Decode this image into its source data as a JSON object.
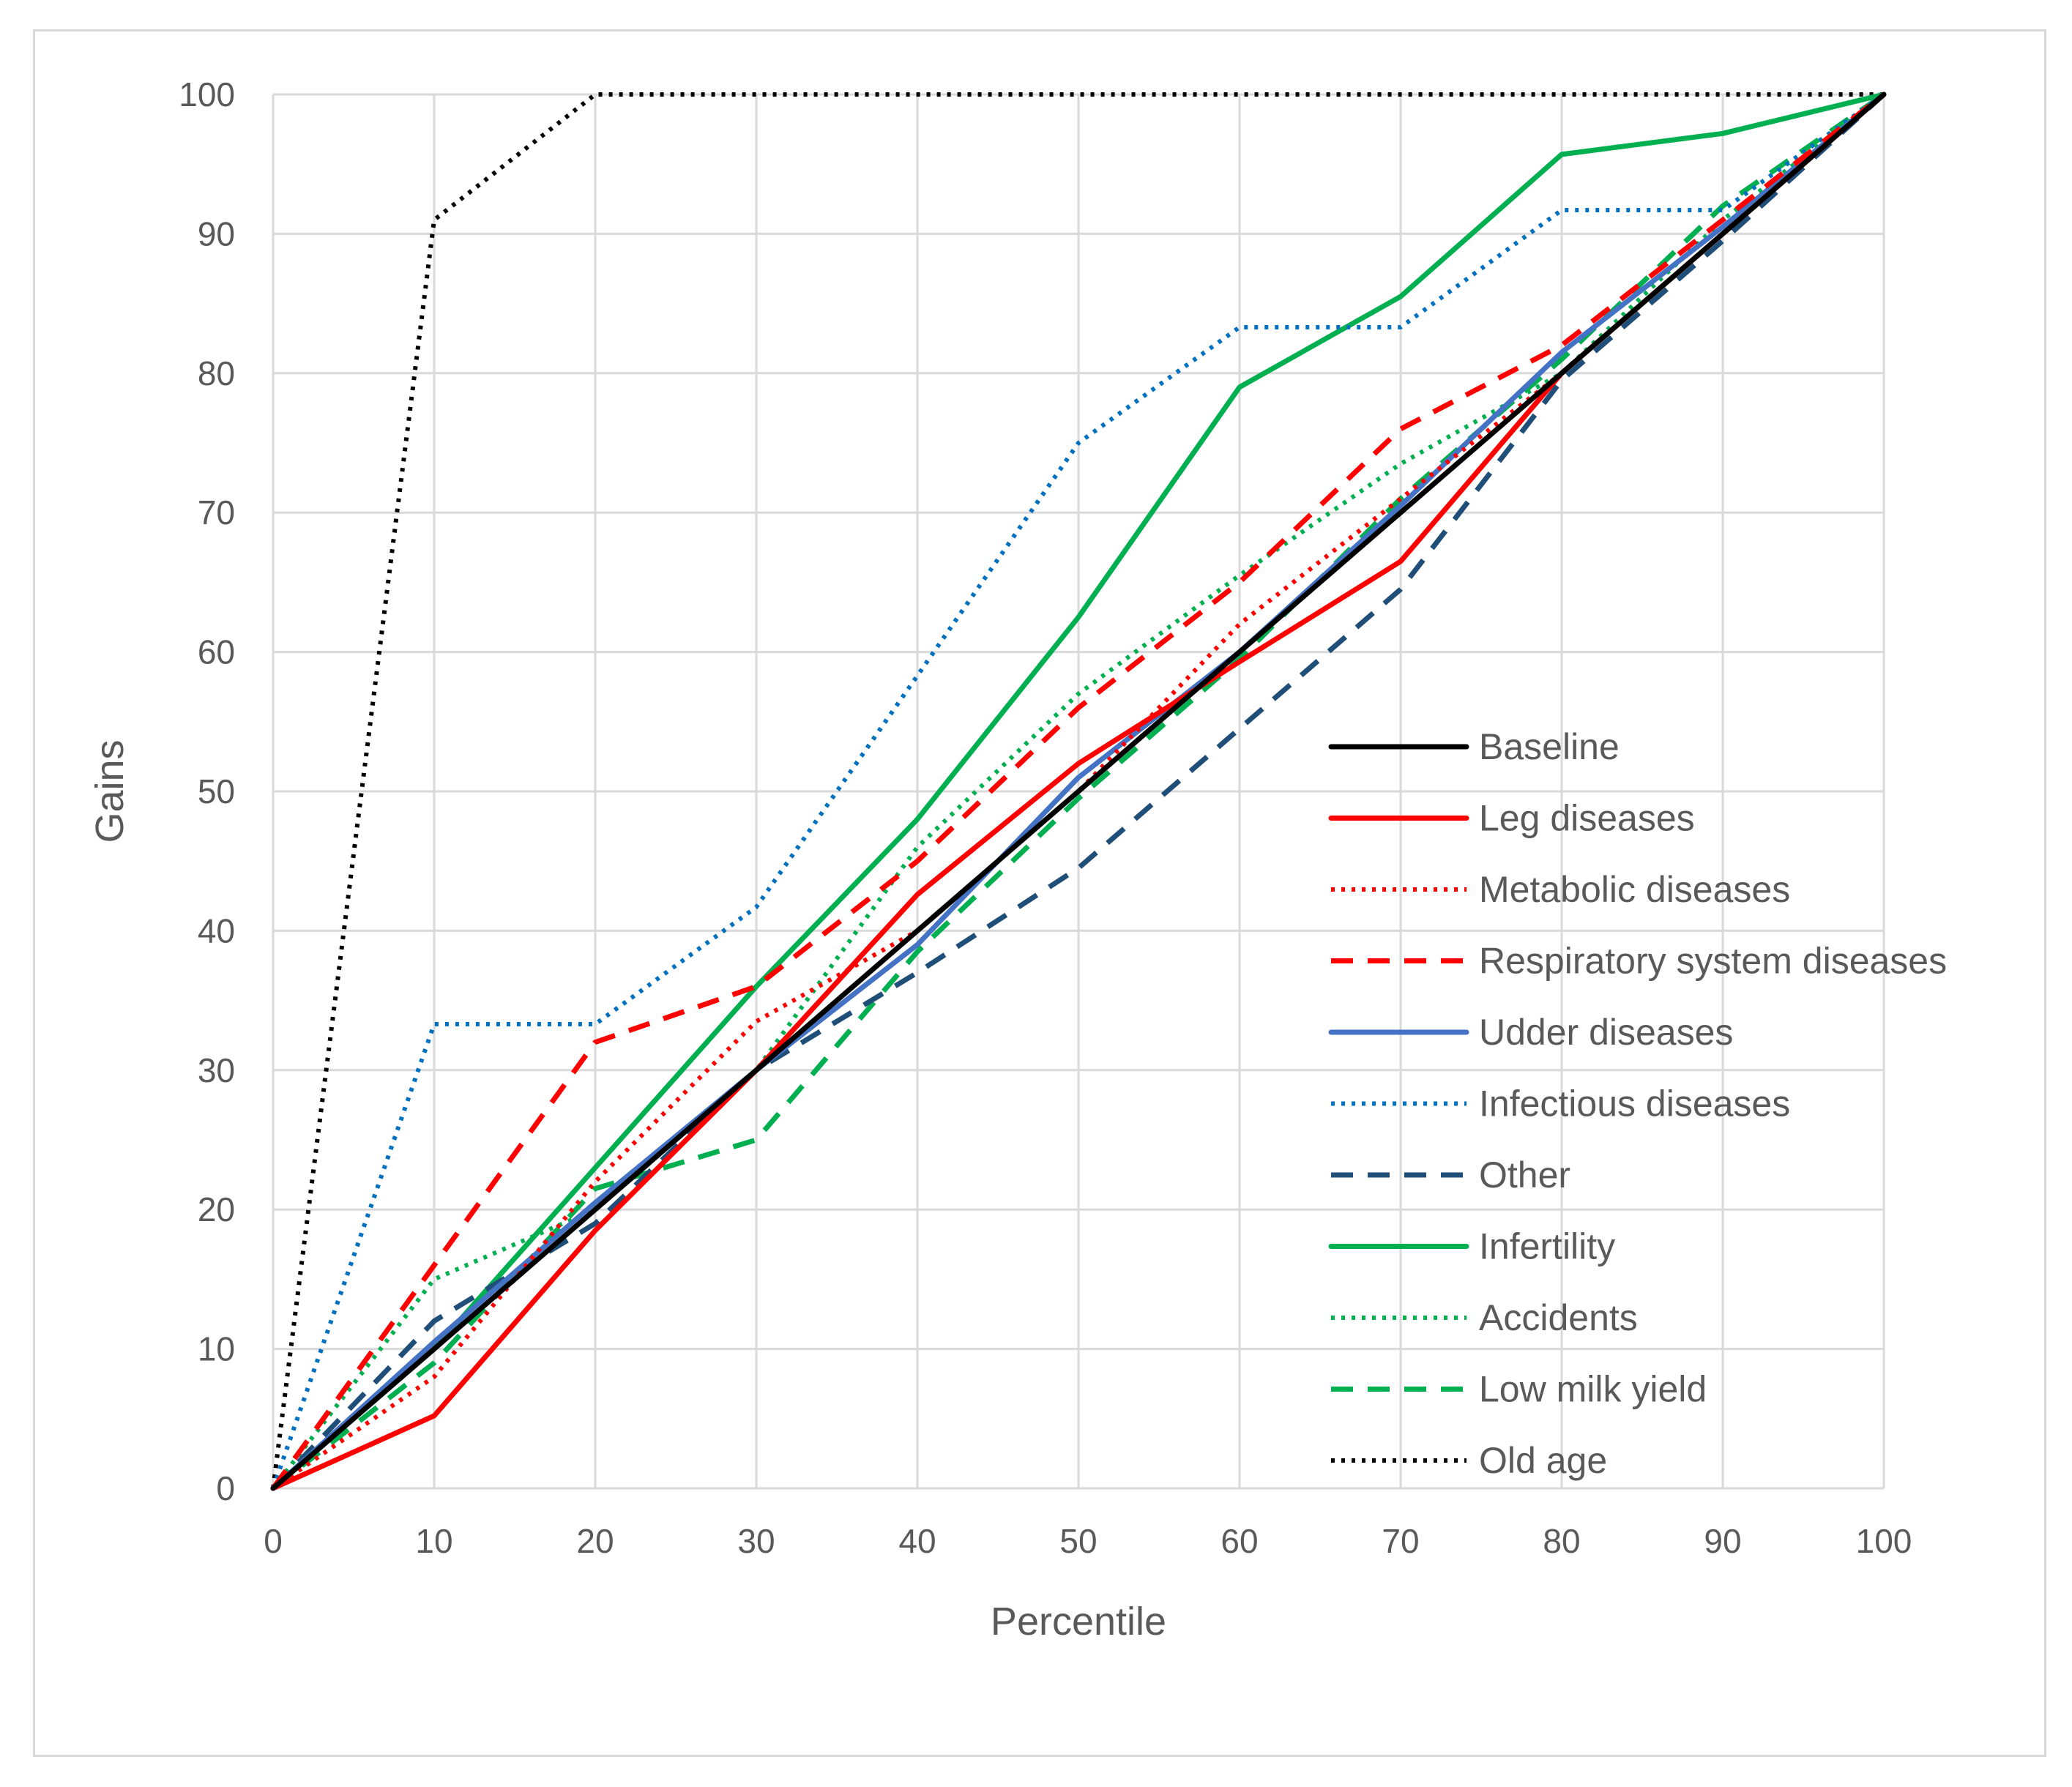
{
  "chart_data": {
    "type": "line",
    "title": "",
    "xlabel": "Percentile",
    "ylabel": "Gains",
    "xlim": [
      0,
      100
    ],
    "ylim": [
      0,
      100
    ],
    "xticks": [
      0,
      10,
      20,
      30,
      40,
      50,
      60,
      70,
      80,
      90,
      100
    ],
    "yticks": [
      0,
      10,
      20,
      30,
      40,
      50,
      60,
      70,
      80,
      90,
      100
    ],
    "grid": true,
    "legend_position": "right",
    "x": [
      0,
      10,
      20,
      30,
      40,
      50,
      60,
      70,
      80,
      90,
      100
    ],
    "series": [
      {
        "name": "Baseline",
        "color": "#000000",
        "style": "solid",
        "values": [
          0,
          10,
          20,
          30,
          40,
          50,
          60,
          70,
          80,
          90,
          100
        ]
      },
      {
        "name": "Leg diseases",
        "color": "#ff0000",
        "style": "solid",
        "values": [
          0,
          5.2,
          18.5,
          30,
          42.6,
          52,
          59.3,
          66.5,
          80,
          90,
          100
        ]
      },
      {
        "name": "Metabolic diseases",
        "color": "#ff0000",
        "style": "dotted",
        "values": [
          0,
          8,
          22,
          33.5,
          40,
          50,
          62,
          71,
          80,
          90,
          100
        ]
      },
      {
        "name": "Respiratory system diseases",
        "color": "#ff0000",
        "style": "dashed",
        "values": [
          0,
          16,
          32,
          36,
          45,
          56,
          65,
          76,
          82,
          91,
          100
        ]
      },
      {
        "name": "Udder diseases",
        "color": "#4472c4",
        "style": "solid",
        "values": [
          0,
          10.5,
          20.5,
          30,
          39,
          51,
          60,
          70.5,
          81.5,
          90.5,
          100
        ]
      },
      {
        "name": "Infectious diseases",
        "color": "#0070c0",
        "style": "dotted",
        "values": [
          0,
          33.3,
          33.3,
          41.7,
          58.3,
          75,
          83.3,
          83.3,
          91.7,
          91.7,
          100
        ]
      },
      {
        "name": "Other",
        "color": "#1f4e79",
        "style": "dashed",
        "values": [
          0,
          12,
          19,
          30,
          37,
          44.5,
          54.5,
          64.5,
          79.5,
          89.5,
          100
        ]
      },
      {
        "name": "Infertility",
        "color": "#00b050",
        "style": "solid",
        "values": [
          0,
          10,
          23,
          36,
          48,
          62.5,
          79,
          85.5,
          95.7,
          97.2,
          100
        ]
      },
      {
        "name": "Accidents",
        "color": "#00b050",
        "style": "dotted",
        "values": [
          0,
          15,
          20,
          30,
          46,
          57,
          65.5,
          73.5,
          80,
          91,
          100
        ]
      },
      {
        "name": "Low milk yield",
        "color": "#00b050",
        "style": "dashed",
        "values": [
          0,
          9,
          21.5,
          25,
          38.5,
          49.5,
          59.5,
          71,
          81,
          92,
          100
        ]
      },
      {
        "name": "Old age",
        "color": "#000000",
        "style": "dotted",
        "values": [
          0,
          91,
          100,
          100,
          100,
          100,
          100,
          100,
          100,
          100,
          100
        ]
      }
    ]
  }
}
